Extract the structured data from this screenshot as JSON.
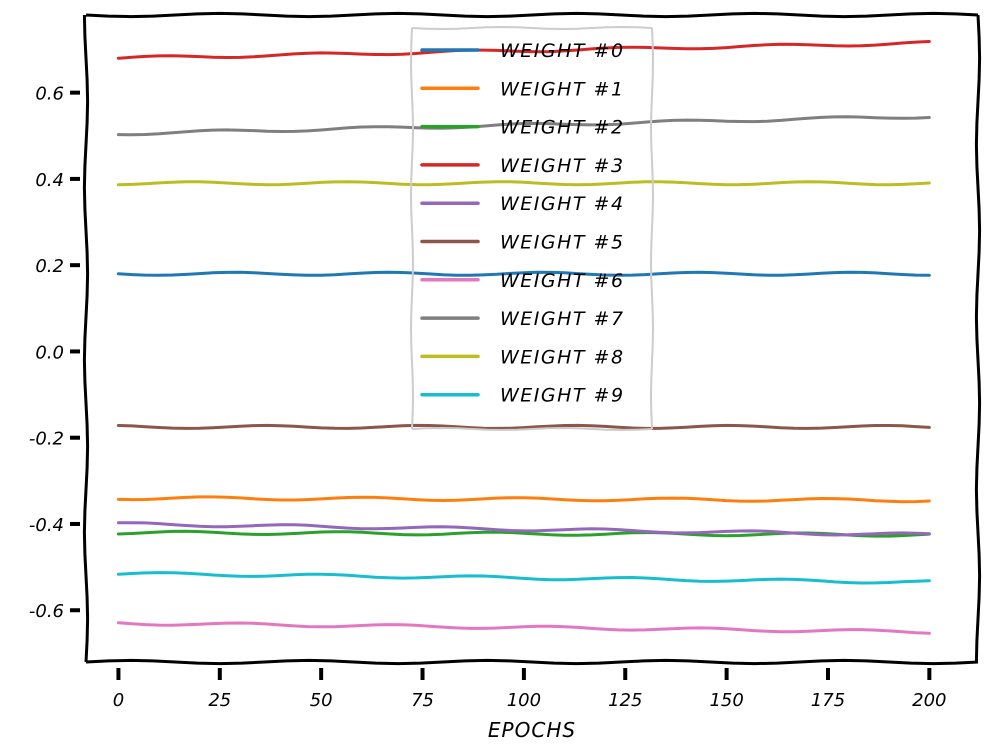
{
  "chart_data": {
    "type": "line",
    "title": "",
    "xlabel": "EPOCHS",
    "ylabel": "",
    "xlim": [
      -8,
      212
    ],
    "ylim": [
      -0.72,
      0.78
    ],
    "x_ticks": [
      0,
      25,
      50,
      75,
      100,
      125,
      150,
      175,
      200
    ],
    "y_ticks": [
      -0.6,
      -0.4,
      -0.2,
      0.0,
      0.2,
      0.4,
      0.6
    ],
    "x_tick_labels": [
      "0",
      "25",
      "50",
      "75",
      "100",
      "125",
      "150",
      "175",
      "200"
    ],
    "y_tick_labels": [
      "-0.6",
      "-0.4",
      "-0.2",
      "0.0",
      "0.2",
      "0.4",
      "0.6"
    ],
    "legend_position": "top-center",
    "x": [
      0,
      200
    ],
    "series": [
      {
        "name": "WEIGHT #0",
        "color": "#1f77b4",
        "values": [
          0.18,
          0.18
        ]
      },
      {
        "name": "WEIGHT #1",
        "color": "#ff7f0e",
        "values": [
          -0.34,
          -0.345
        ]
      },
      {
        "name": "WEIGHT #2",
        "color": "#2ca02c",
        "values": [
          -0.42,
          -0.425
        ]
      },
      {
        "name": "WEIGHT #3",
        "color": "#d62728",
        "values": [
          0.68,
          0.715
        ]
      },
      {
        "name": "WEIGHT #4",
        "color": "#9467bd",
        "values": [
          -0.4,
          -0.425
        ]
      },
      {
        "name": "WEIGHT #5",
        "color": "#8c564b",
        "values": [
          -0.175,
          -0.175
        ]
      },
      {
        "name": "WEIGHT #6",
        "color": "#e377c2",
        "values": [
          -0.63,
          -0.65
        ]
      },
      {
        "name": "WEIGHT #7",
        "color": "#7f7f7f",
        "values": [
          0.505,
          0.545
        ]
      },
      {
        "name": "WEIGHT #8",
        "color": "#bcbd22",
        "values": [
          0.39,
          0.39
        ]
      },
      {
        "name": "WEIGHT #9",
        "color": "#17becf",
        "values": [
          -0.515,
          -0.535
        ]
      }
    ]
  }
}
